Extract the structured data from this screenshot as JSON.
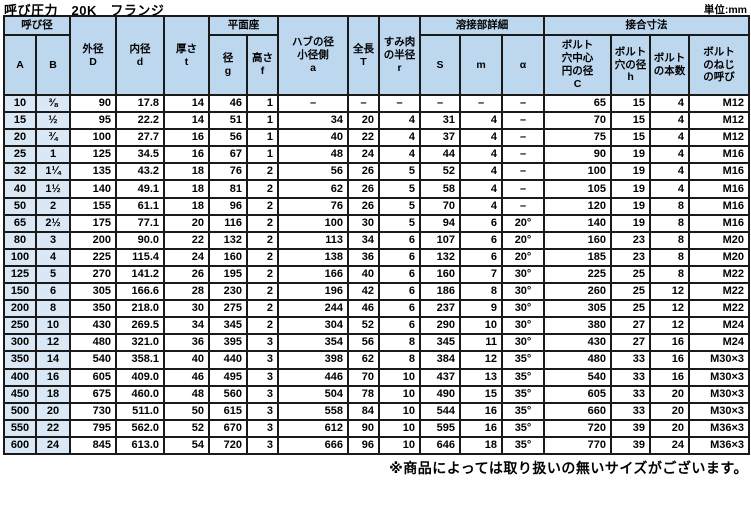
{
  "title": "呼び圧力　20K　フランジ",
  "unit_label": "単位:mm",
  "footnote": "※商品によっては取り扱いの無いサイズがございます。",
  "colors": {
    "header_bg": "#BDD7EE",
    "nominal_bg": "#DAE7F4",
    "border": "#1a1a1a"
  },
  "table": {
    "group_headers": {
      "nominal_diameter": "呼び径",
      "flat_face": "平面座",
      "weld_detail": "溶接部詳細",
      "joint_dimensions": "接合寸法"
    },
    "col_headers": {
      "a": "A",
      "b": "B",
      "outer_dia": "外径\nD",
      "inner_dia": "内径\nd",
      "thickness": "厚さ\nt",
      "face_dia": "径\ng",
      "face_height": "高さ\nf",
      "hub_dia": "ハブの径\n小径側\na",
      "total_length": "全長\nT",
      "fillet_radius": "すみ肉\nの半径\nr",
      "weld_s": "S",
      "weld_m": "m",
      "weld_alpha": "α",
      "bolt_circle": "ボルト\n穴中心\n円の径\nC",
      "bolt_hole": "ボルト\n穴の径\nh",
      "bolt_count": "ボルト\nの本数",
      "bolt_thread": "ボルト\nのねじ\nの呼び"
    },
    "col_keys": [
      "a",
      "b",
      "outer-dia-D",
      "inner-dia-d",
      "thickness-t",
      "face-dia-g",
      "face-height-f",
      "hub-dia-a",
      "total-length-T",
      "fillet-radius-r",
      "weld-S",
      "weld-m",
      "weld-alpha",
      "bolt-circle-C",
      "bolt-hole-h",
      "bolt-count",
      "bolt-thread"
    ],
    "rows": [
      [
        "10",
        "⅜",
        "90",
        "17.8",
        "14",
        "46",
        "1",
        "–",
        "–",
        "–",
        "–",
        "–",
        "–",
        "65",
        "15",
        "4",
        "M12"
      ],
      [
        "15",
        "½",
        "95",
        "22.2",
        "14",
        "51",
        "1",
        "34",
        "20",
        "4",
        "31",
        "4",
        "–",
        "70",
        "15",
        "4",
        "M12"
      ],
      [
        "20",
        "¾",
        "100",
        "27.7",
        "16",
        "56",
        "1",
        "40",
        "22",
        "4",
        "37",
        "4",
        "–",
        "75",
        "15",
        "4",
        "M12"
      ],
      [
        "25",
        "1",
        "125",
        "34.5",
        "16",
        "67",
        "1",
        "48",
        "24",
        "4",
        "44",
        "4",
        "–",
        "90",
        "19",
        "4",
        "M16"
      ],
      [
        "32",
        "1¼",
        "135",
        "43.2",
        "18",
        "76",
        "2",
        "56",
        "26",
        "5",
        "52",
        "4",
        "–",
        "100",
        "19",
        "4",
        "M16"
      ],
      [
        "40",
        "1½",
        "140",
        "49.1",
        "18",
        "81",
        "2",
        "62",
        "26",
        "5",
        "58",
        "4",
        "–",
        "105",
        "19",
        "4",
        "M16"
      ],
      [
        "50",
        "2",
        "155",
        "61.1",
        "18",
        "96",
        "2",
        "76",
        "26",
        "5",
        "70",
        "4",
        "–",
        "120",
        "19",
        "8",
        "M16"
      ],
      [
        "65",
        "2½",
        "175",
        "77.1",
        "20",
        "116",
        "2",
        "100",
        "30",
        "5",
        "94",
        "6",
        "20°",
        "140",
        "19",
        "8",
        "M16"
      ],
      [
        "80",
        "3",
        "200",
        "90.0",
        "22",
        "132",
        "2",
        "113",
        "34",
        "6",
        "107",
        "6",
        "20°",
        "160",
        "23",
        "8",
        "M20"
      ],
      [
        "100",
        "4",
        "225",
        "115.4",
        "24",
        "160",
        "2",
        "138",
        "36",
        "6",
        "132",
        "6",
        "20°",
        "185",
        "23",
        "8",
        "M20"
      ],
      [
        "125",
        "5",
        "270",
        "141.2",
        "26",
        "195",
        "2",
        "166",
        "40",
        "6",
        "160",
        "7",
        "30°",
        "225",
        "25",
        "8",
        "M22"
      ],
      [
        "150",
        "6",
        "305",
        "166.6",
        "28",
        "230",
        "2",
        "196",
        "42",
        "6",
        "186",
        "8",
        "30°",
        "260",
        "25",
        "12",
        "M22"
      ],
      [
        "200",
        "8",
        "350",
        "218.0",
        "30",
        "275",
        "2",
        "244",
        "46",
        "6",
        "237",
        "9",
        "30°",
        "305",
        "25",
        "12",
        "M22"
      ],
      [
        "250",
        "10",
        "430",
        "269.5",
        "34",
        "345",
        "2",
        "304",
        "52",
        "6",
        "290",
        "10",
        "30°",
        "380",
        "27",
        "12",
        "M24"
      ],
      [
        "300",
        "12",
        "480",
        "321.0",
        "36",
        "395",
        "3",
        "354",
        "56",
        "8",
        "345",
        "11",
        "30°",
        "430",
        "27",
        "16",
        "M24"
      ],
      [
        "350",
        "14",
        "540",
        "358.1",
        "40",
        "440",
        "3",
        "398",
        "62",
        "8",
        "384",
        "12",
        "35°",
        "480",
        "33",
        "16",
        "M30×3"
      ],
      [
        "400",
        "16",
        "605",
        "409.0",
        "46",
        "495",
        "3",
        "446",
        "70",
        "10",
        "437",
        "13",
        "35°",
        "540",
        "33",
        "16",
        "M30×3"
      ],
      [
        "450",
        "18",
        "675",
        "460.0",
        "48",
        "560",
        "3",
        "504",
        "78",
        "10",
        "490",
        "15",
        "35°",
        "605",
        "33",
        "20",
        "M30×3"
      ],
      [
        "500",
        "20",
        "730",
        "511.0",
        "50",
        "615",
        "3",
        "558",
        "84",
        "10",
        "544",
        "16",
        "35°",
        "660",
        "33",
        "20",
        "M30×3"
      ],
      [
        "550",
        "22",
        "795",
        "562.0",
        "52",
        "670",
        "3",
        "612",
        "90",
        "10",
        "595",
        "16",
        "35°",
        "720",
        "39",
        "20",
        "M36×3"
      ],
      [
        "600",
        "24",
        "845",
        "613.0",
        "54",
        "720",
        "3",
        "666",
        "96",
        "10",
        "646",
        "18",
        "35°",
        "770",
        "39",
        "24",
        "M36×3"
      ]
    ]
  }
}
